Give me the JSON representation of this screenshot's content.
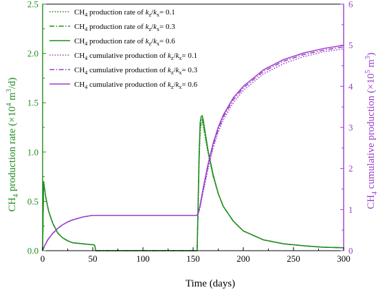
{
  "chart_data": {
    "type": "line",
    "xlabel": "Time (days)",
    "ylabel_left": {
      "base": "CH",
      "sub": "4",
      "text1": " production rate (×10",
      "sup": "4",
      "text2": " m",
      "sup2": "3",
      "text3": "/d)"
    },
    "ylabel_right": {
      "base": "CH",
      "sub": "4",
      "text1": " cumulative production (×10",
      "sup": "5",
      "text2": " m",
      "sup2": "3",
      "text3": ")"
    },
    "xlim": [
      0,
      300
    ],
    "ylim_left": [
      0,
      2.5
    ],
    "ylim_right": [
      0,
      6
    ],
    "x_ticks": [
      "0",
      "50",
      "100",
      "150",
      "200",
      "250",
      "300"
    ],
    "y_left_ticks": [
      "0.0",
      "0.5",
      "1.0",
      "1.5",
      "2.0",
      "2.5"
    ],
    "y_right_ticks": [
      "0",
      "1",
      "2",
      "3",
      "4",
      "5",
      "6"
    ],
    "colors": {
      "rate": "#1e8c1e",
      "cumulative": "#9b3ec8",
      "left_axis": "#1e8c1e",
      "right_axis": "#9b3ec8"
    },
    "series": [
      {
        "name": "CH4 production rate of kz/kx= 0.1",
        "label": {
          "pre": "CH",
          "sub": "4",
          "mid": " production rate of ",
          "k1": "k",
          "s1": "z",
          "slash": "/",
          "k2": "k",
          "s2": "x",
          "val": "= 0.1"
        },
        "axis": "left",
        "style": "dotted",
        "color": "#1e8c1e",
        "x": [
          0,
          1,
          3,
          6,
          10,
          15,
          20,
          25,
          30,
          40,
          50,
          51,
          52,
          53,
          54,
          100,
          150,
          154,
          155,
          156,
          157,
          158,
          159,
          160,
          162,
          165,
          170,
          175,
          180,
          190,
          200,
          220,
          240,
          260,
          280,
          300
        ],
        "y": [
          0.0,
          0.7,
          0.55,
          0.4,
          0.28,
          0.18,
          0.13,
          0.1,
          0.08,
          0.07,
          0.06,
          0.06,
          0.05,
          0.0,
          0.0,
          0.0,
          0.0,
          0.0,
          0.4,
          0.9,
          1.2,
          1.28,
          1.3,
          1.26,
          1.15,
          0.98,
          0.75,
          0.58,
          0.45,
          0.3,
          0.2,
          0.11,
          0.07,
          0.05,
          0.035,
          0.03
        ]
      },
      {
        "name": "CH4 production rate of kz/kx= 0.3",
        "label": {
          "pre": "CH",
          "sub": "4",
          "mid": " production rate of ",
          "k1": "k",
          "s1": "z",
          "slash": "/",
          "k2": "k",
          "s2": "x",
          "val": "= 0.3"
        },
        "axis": "left",
        "style": "dashdot",
        "color": "#1e8c1e",
        "x": [
          0,
          1,
          3,
          6,
          10,
          15,
          20,
          25,
          30,
          40,
          50,
          51,
          52,
          53,
          54,
          100,
          150,
          154,
          155,
          156,
          157,
          158,
          159,
          160,
          162,
          165,
          170,
          175,
          180,
          190,
          200,
          220,
          240,
          260,
          280,
          300
        ],
        "y": [
          0.0,
          0.7,
          0.55,
          0.4,
          0.28,
          0.18,
          0.13,
          0.1,
          0.08,
          0.07,
          0.06,
          0.06,
          0.05,
          0.0,
          0.0,
          0.0,
          0.0,
          0.0,
          0.45,
          0.95,
          1.25,
          1.32,
          1.34,
          1.3,
          1.18,
          1.0,
          0.76,
          0.58,
          0.45,
          0.3,
          0.2,
          0.11,
          0.07,
          0.05,
          0.035,
          0.03
        ]
      },
      {
        "name": "CH4 production rate of kz/kx= 0.6",
        "label": {
          "pre": "CH",
          "sub": "4",
          "mid": " production rate of ",
          "k1": "k",
          "s1": "z",
          "slash": "/",
          "k2": "k",
          "s2": "x",
          "val": "= 0.6"
        },
        "axis": "left",
        "style": "solid",
        "color": "#1e8c1e",
        "x": [
          0,
          1,
          3,
          6,
          10,
          15,
          20,
          25,
          30,
          40,
          50,
          51,
          52,
          53,
          54,
          100,
          150,
          154,
          155,
          156,
          157,
          158,
          159,
          160,
          162,
          165,
          170,
          175,
          180,
          190,
          200,
          220,
          240,
          260,
          280,
          300
        ],
        "y": [
          0.0,
          0.7,
          0.55,
          0.4,
          0.28,
          0.18,
          0.13,
          0.1,
          0.08,
          0.07,
          0.06,
          0.06,
          0.05,
          0.0,
          0.0,
          0.0,
          0.0,
          0.0,
          0.5,
          1.0,
          1.3,
          1.36,
          1.37,
          1.33,
          1.2,
          1.01,
          0.77,
          0.58,
          0.45,
          0.3,
          0.2,
          0.11,
          0.07,
          0.05,
          0.035,
          0.03
        ]
      },
      {
        "name": "CH4 cumulative production of kz/kx= 0.1",
        "label": {
          "pre": "CH",
          "sub": "4",
          "mid": " cumulative production of ",
          "k1": "k",
          "s1": "z",
          "slash": "/",
          "k2": "k",
          "s2": "x",
          "val": "= 0.1"
        },
        "axis": "right",
        "style": "dotted",
        "color": "#9b3ec8",
        "x": [
          0,
          2,
          5,
          10,
          15,
          20,
          25,
          30,
          40,
          50,
          53,
          100,
          150,
          154,
          156,
          158,
          160,
          165,
          170,
          175,
          180,
          190,
          200,
          220,
          240,
          260,
          280,
          300
        ],
        "y": [
          0.0,
          0.12,
          0.26,
          0.42,
          0.54,
          0.63,
          0.7,
          0.75,
          0.82,
          0.86,
          0.86,
          0.86,
          0.86,
          0.86,
          0.95,
          1.18,
          1.42,
          2.0,
          2.5,
          2.88,
          3.18,
          3.6,
          3.9,
          4.3,
          4.55,
          4.72,
          4.84,
          4.91
        ]
      },
      {
        "name": "CH4 cumulative production of kz/kx= 0.3",
        "label": {
          "pre": "CH",
          "sub": "4",
          "mid": " cumulative production of ",
          "k1": "k",
          "s1": "z",
          "slash": "/",
          "k2": "k",
          "s2": "x",
          "val": "= 0.3"
        },
        "axis": "right",
        "style": "dashdot",
        "color": "#9b3ec8",
        "x": [
          0,
          2,
          5,
          10,
          15,
          20,
          25,
          30,
          40,
          50,
          53,
          100,
          150,
          154,
          156,
          158,
          160,
          165,
          170,
          175,
          180,
          190,
          200,
          220,
          240,
          260,
          280,
          300
        ],
        "y": [
          0.0,
          0.12,
          0.26,
          0.42,
          0.54,
          0.63,
          0.7,
          0.75,
          0.82,
          0.86,
          0.86,
          0.86,
          0.86,
          0.86,
          0.97,
          1.22,
          1.48,
          2.07,
          2.57,
          2.95,
          3.25,
          3.67,
          3.96,
          4.36,
          4.61,
          4.77,
          4.88,
          4.96
        ]
      },
      {
        "name": "CH4 cumulative production of kz/kx= 0.6",
        "label": {
          "pre": "CH",
          "sub": "4",
          "mid": " cumulative production of ",
          "k1": "k",
          "s1": "z",
          "slash": "/",
          "k2": "k",
          "s2": "x",
          "val": "= 0.6"
        },
        "axis": "right",
        "style": "solid",
        "color": "#9b3ec8",
        "x": [
          0,
          2,
          5,
          10,
          15,
          20,
          25,
          30,
          40,
          50,
          53,
          100,
          150,
          154,
          156,
          158,
          160,
          165,
          170,
          175,
          180,
          190,
          200,
          220,
          240,
          260,
          280,
          300
        ],
        "y": [
          0.0,
          0.12,
          0.26,
          0.42,
          0.54,
          0.63,
          0.7,
          0.75,
          0.82,
          0.86,
          0.86,
          0.86,
          0.86,
          0.86,
          0.99,
          1.25,
          1.52,
          2.12,
          2.62,
          3.0,
          3.3,
          3.72,
          4.0,
          4.4,
          4.65,
          4.81,
          4.92,
          5.0
        ]
      }
    ],
    "legend_position": "top-left"
  }
}
